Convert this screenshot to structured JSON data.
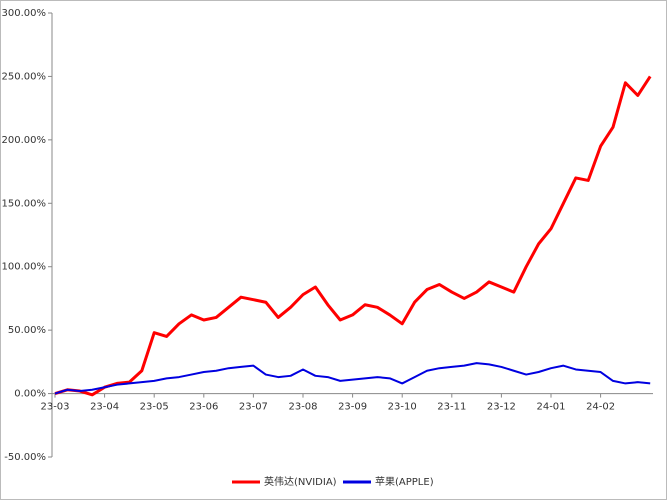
{
  "chart_data": {
    "type": "line",
    "categories": [
      "23-03",
      null,
      null,
      null,
      "23-04",
      null,
      null,
      null,
      "23-05",
      null,
      null,
      null,
      "23-06",
      null,
      null,
      null,
      "23-07",
      null,
      null,
      null,
      "23-08",
      null,
      null,
      null,
      "23-09",
      null,
      null,
      null,
      "23-10",
      null,
      null,
      null,
      "23-11",
      null,
      null,
      null,
      "23-12",
      null,
      null,
      null,
      "24-01",
      null,
      null,
      null,
      "24-02",
      null,
      null,
      null,
      null
    ],
    "series": [
      {
        "name": "英伟达(NVIDIA)",
        "color": "#ff0000",
        "values": [
          0,
          3,
          2,
          -1,
          5,
          8,
          9,
          18,
          48,
          45,
          55,
          62,
          58,
          60,
          68,
          76,
          74,
          72,
          60,
          68,
          78,
          84,
          70,
          58,
          62,
          70,
          68,
          62,
          55,
          72,
          82,
          86,
          80,
          75,
          80,
          88,
          84,
          80,
          100,
          118,
          130,
          150,
          170,
          168,
          195,
          210,
          245,
          235,
          250
        ]
      },
      {
        "name": "苹果(APPLE)",
        "color": "#0000e0",
        "values": [
          0,
          3,
          2,
          3,
          5,
          7,
          8,
          9,
          10,
          12,
          13,
          15,
          17,
          18,
          20,
          21,
          22,
          15,
          13,
          14,
          19,
          14,
          13,
          10,
          11,
          12,
          13,
          12,
          8,
          13,
          18,
          20,
          21,
          22,
          24,
          23,
          21,
          18,
          15,
          17,
          20,
          22,
          19,
          18,
          17,
          10,
          8,
          9,
          8
        ]
      }
    ],
    "ylim": [
      -50,
      300
    ],
    "yticks": [
      {
        "value": -50,
        "label": "-50.00%"
      },
      {
        "value": 0,
        "label": "0.00%"
      },
      {
        "value": 50,
        "label": "50.00%"
      },
      {
        "value": 100,
        "label": "100.00%"
      },
      {
        "value": 150,
        "label": "150.00%"
      },
      {
        "value": 200,
        "label": "200.00%"
      },
      {
        "value": 250,
        "label": "250.00%"
      },
      {
        "value": 300,
        "label": "300.00%"
      }
    ],
    "legend": "bottom"
  }
}
